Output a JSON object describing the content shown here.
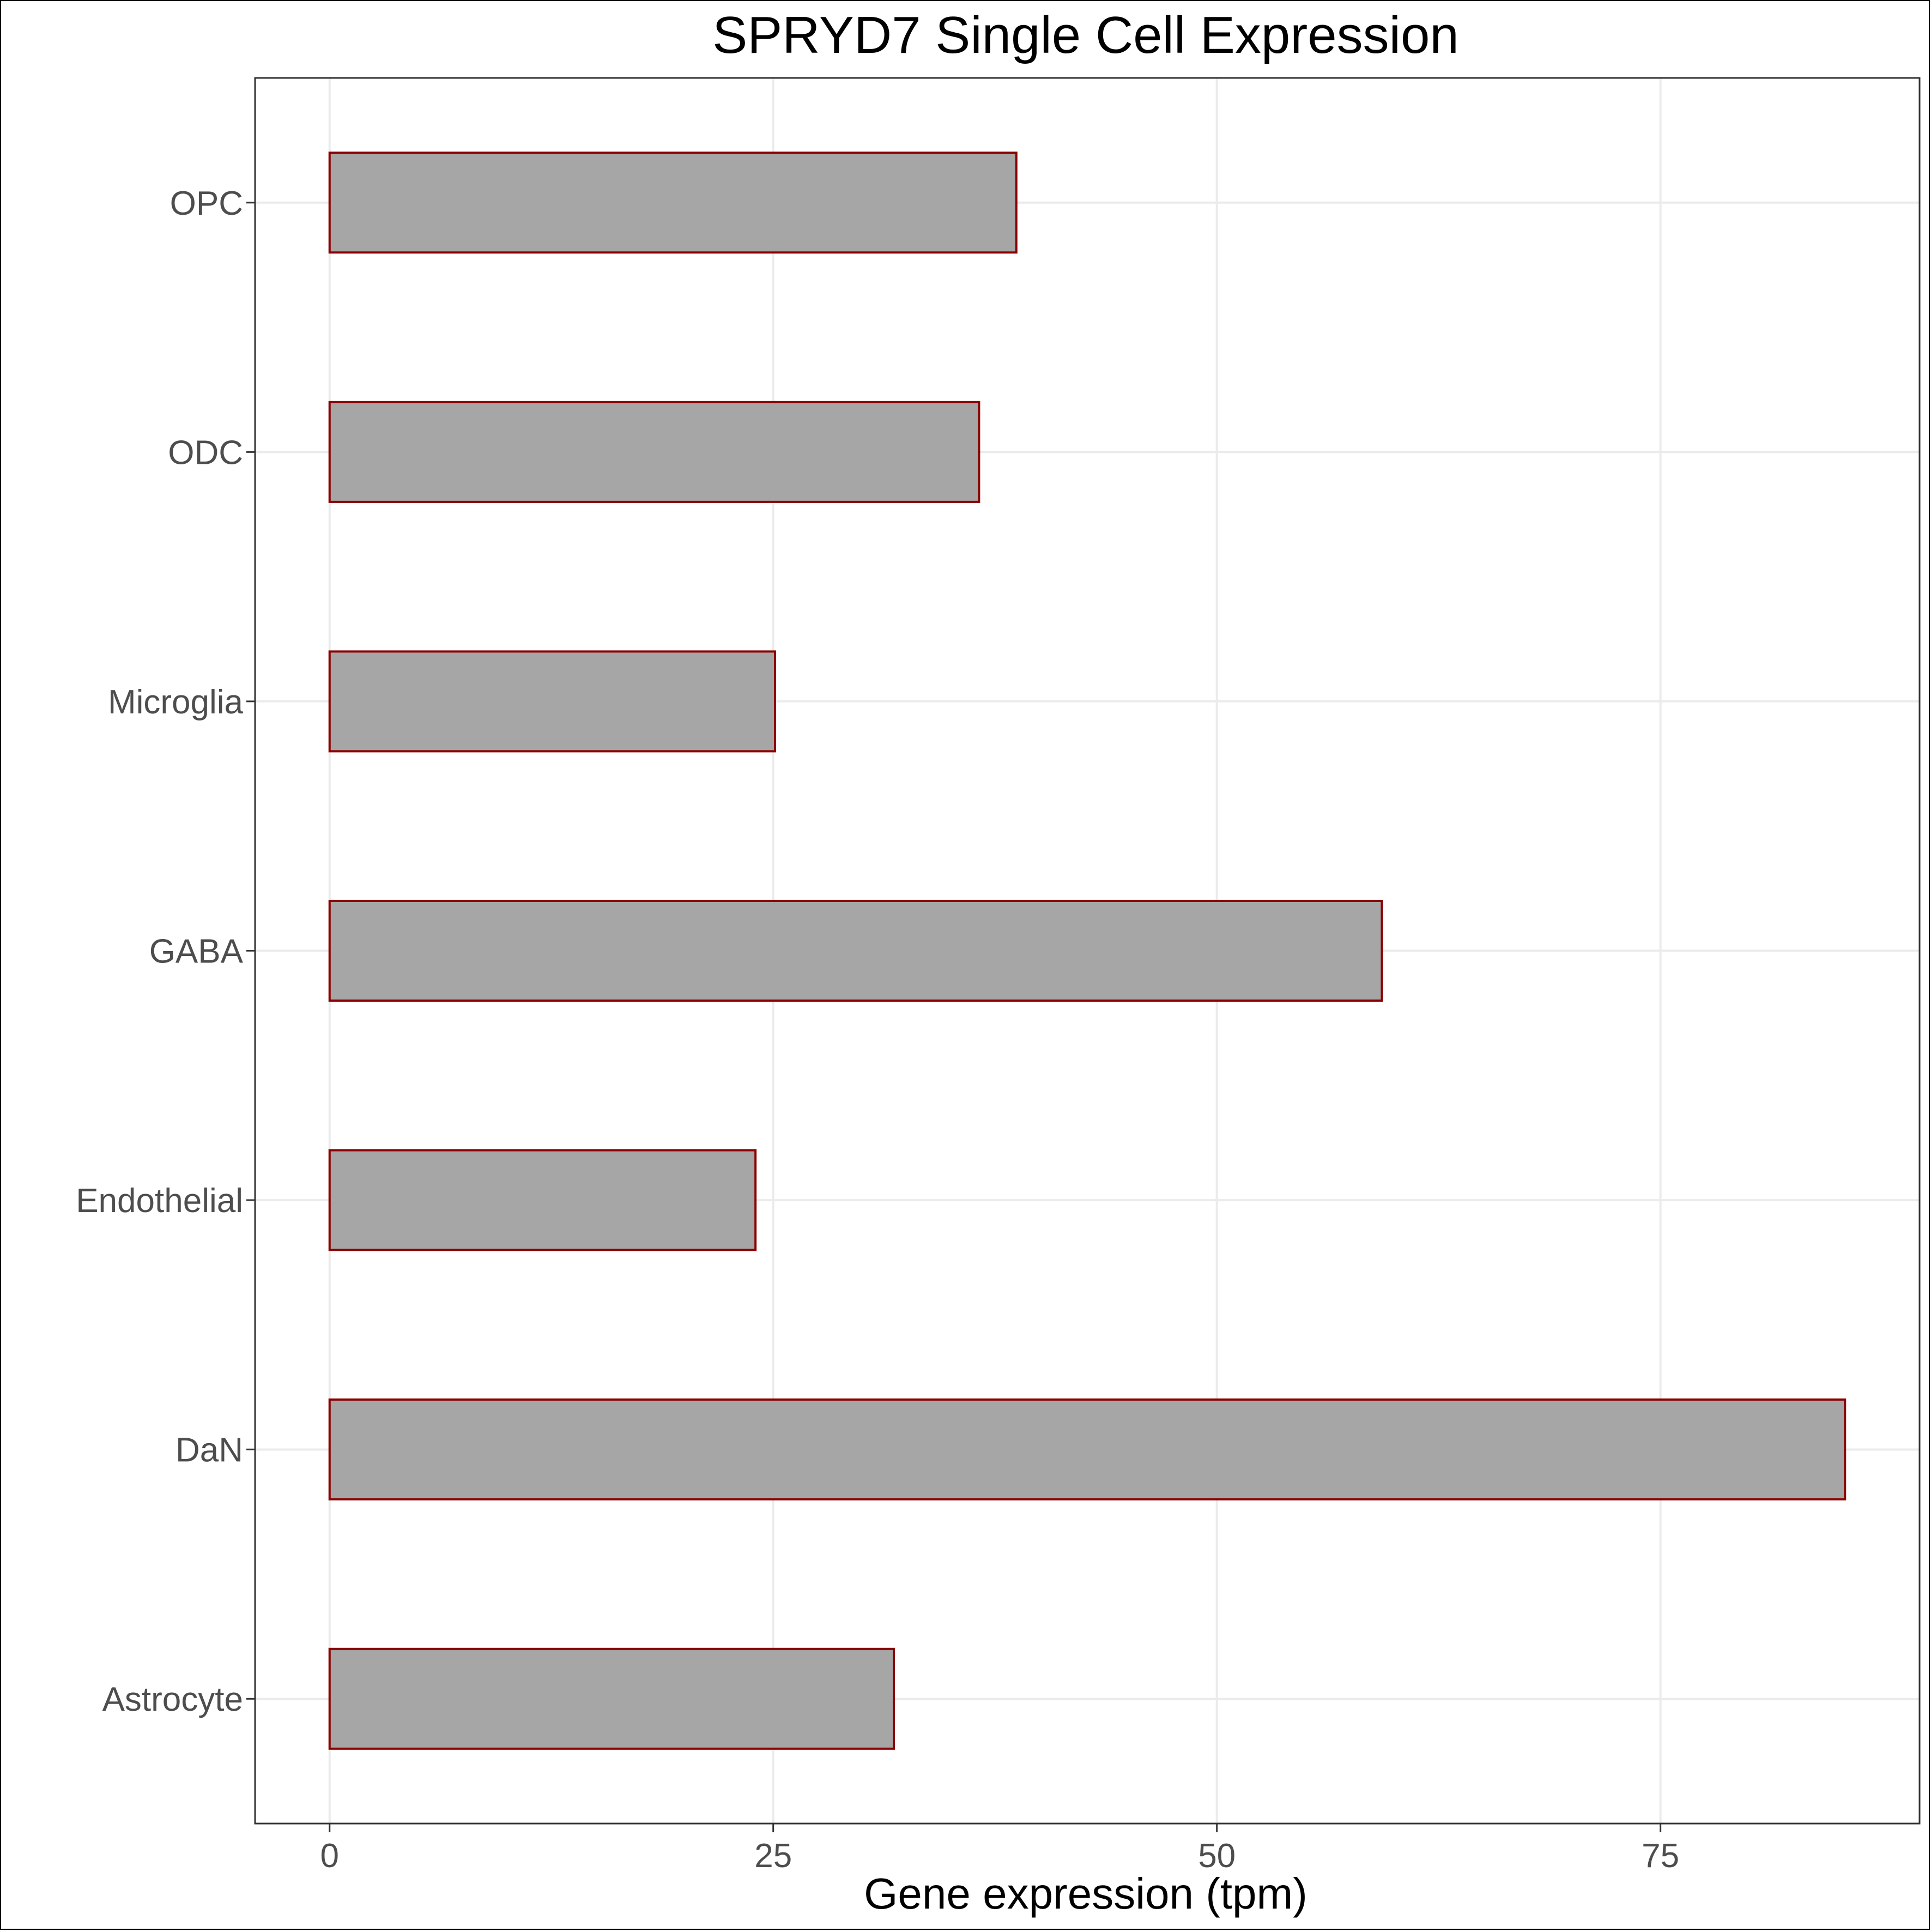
{
  "chart_data": {
    "type": "bar",
    "orientation": "horizontal",
    "title": "SPRYD7 Single Cell Expression",
    "xlabel": "Gene expression (tpm)",
    "ylabel": "",
    "categories": [
      "OPC",
      "ODC",
      "Microglia",
      "GABA",
      "Endothelial",
      "DaN",
      "Astrocyte"
    ],
    "values": [
      38.7,
      36.6,
      25.1,
      59.3,
      24.0,
      85.4,
      31.8
    ],
    "xlim": [
      -4.2,
      89.6
    ],
    "xticks": [
      0,
      25,
      50,
      75
    ],
    "xtick_labels": [
      "0",
      "25",
      "50",
      "75"
    ],
    "grid": true,
    "legend": "none",
    "colors": {
      "bar_fill": "#a6a6a6",
      "bar_stroke": "#8b0000",
      "grid": "#ebebeb",
      "panel_border": "#333333",
      "tick_text": "#4d4d4d"
    }
  }
}
